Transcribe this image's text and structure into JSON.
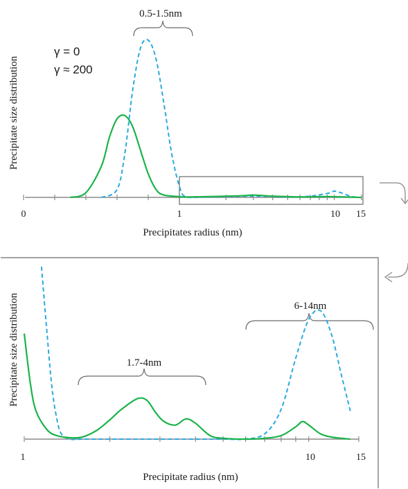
{
  "colors": {
    "gamma0": "#2aa9e0",
    "gamma200": "#1ab34a",
    "axis": "#7f7f7f",
    "bracket": "#6a6a6a",
    "frame": "#6a6a6a"
  },
  "legend": [
    {
      "label": "γ = 0",
      "color": "#2aa9e0",
      "style": "dashed"
    },
    {
      "label": "γ ≈ 200",
      "color": "#1ab34a",
      "style": "solid"
    }
  ],
  "arrow_icons": [
    "curved-arrow-right-icon",
    "curved-arrow-left-icon"
  ],
  "chart_data": [
    {
      "type": "line",
      "ylabel": "Precipitate size distribution",
      "xlabel": "Precipitates radius (nm)",
      "x_scale": "piecewise: linear 0–1 nm, logarithmic 1–15 nm",
      "xlim": [
        0,
        15
      ],
      "tick_labels": [
        "0",
        "1",
        "10",
        "15"
      ],
      "annotations": [
        "0.5-1.5nm"
      ],
      "zoom_box_x_range": [
        1,
        15
      ],
      "series": [
        {
          "name": "γ = 0",
          "style": "dashed",
          "x": [
            0.5,
            0.6,
            0.65,
            0.7,
            0.75,
            0.8,
            0.85,
            0.9,
            0.95,
            1.0,
            1.1,
            1.5,
            3,
            6,
            9,
            10,
            11,
            13,
            15
          ],
          "y": [
            0,
            0.05,
            0.28,
            0.68,
            0.95,
            1.0,
            0.88,
            0.6,
            0.28,
            0.07,
            0.005,
            0.003,
            0.008,
            0.003,
            0.025,
            0.04,
            0.03,
            0.005,
            0
          ]
        },
        {
          "name": "γ ≈ 200",
          "style": "solid",
          "x": [
            0.3,
            0.4,
            0.5,
            0.55,
            0.6,
            0.65,
            0.7,
            0.75,
            0.8,
            0.85,
            0.9,
            1.0,
            1.2,
            2.5,
            3,
            4,
            6,
            9,
            15
          ],
          "y": [
            0,
            0.03,
            0.2,
            0.38,
            0.5,
            0.52,
            0.45,
            0.3,
            0.15,
            0.05,
            0.015,
            0.005,
            0.003,
            0.01,
            0.015,
            0.008,
            0.003,
            0.005,
            0
          ]
        }
      ]
    },
    {
      "type": "line",
      "ylabel": "Precipitate size distribution",
      "xlabel": "Precipitate radius (nm)",
      "x_scale": "log",
      "xlim": [
        1,
        15
      ],
      "tick_labels": [
        "1",
        "10",
        "15"
      ],
      "annotations": [
        "1.7-4nm",
        "6-14nm"
      ],
      "series": [
        {
          "name": "γ = 0",
          "style": "dashed",
          "x": [
            1.15,
            1.2,
            1.25,
            1.3,
            1.35,
            1.45,
            1.6,
            2,
            3,
            4,
            5,
            5.9,
            7,
            8,
            9,
            10,
            11,
            12,
            13,
            14
          ],
          "y": [
            0.98,
            0.62,
            0.3,
            0.12,
            0.03,
            0.0,
            0.0,
            0.0,
            0.0,
            0.0,
            0.0,
            0.0,
            0.03,
            0.17,
            0.46,
            0.68,
            0.73,
            0.6,
            0.37,
            0.16
          ]
        },
        {
          "name": "γ ≈ 200",
          "style": "solid",
          "x": [
            1.0,
            1.05,
            1.1,
            1.2,
            1.3,
            1.45,
            1.6,
            1.8,
            2.0,
            2.2,
            2.5,
            2.7,
            2.9,
            3.1,
            3.4,
            3.7,
            4.0,
            4.5,
            5,
            6,
            7,
            8,
            9,
            9.5,
            10,
            11,
            12,
            13,
            14
          ],
          "y": [
            0.6,
            0.32,
            0.16,
            0.055,
            0.02,
            0.008,
            0.012,
            0.05,
            0.11,
            0.17,
            0.23,
            0.22,
            0.15,
            0.1,
            0.08,
            0.115,
            0.09,
            0.02,
            0.005,
            0.0,
            0.005,
            0.02,
            0.07,
            0.1,
            0.08,
            0.03,
            0.012,
            0.005,
            0.0
          ]
        }
      ]
    }
  ]
}
